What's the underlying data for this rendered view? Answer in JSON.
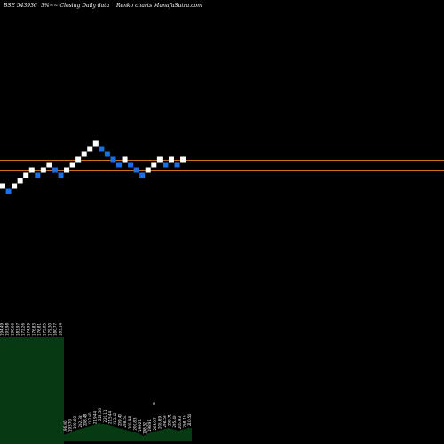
{
  "header": {
    "left": "BSE 543936",
    "mid": "3%~~ Closing Daily data",
    "right": "Renko charts MunafaSutra.com"
  },
  "colors": {
    "background": "#000000",
    "up_brick": "#ffffff",
    "down_brick": "#1a6fe8",
    "ref_line": "#c8701e",
    "volume": "#063a12"
  },
  "chart_data": {
    "type": "renko",
    "brick_pct": 3,
    "bricks": [
      {
        "dir": "up",
        "close": 0
      },
      {
        "dir": "down",
        "close": -1
      },
      {
        "dir": "up",
        "close": 0
      },
      {
        "dir": "up",
        "close": 1
      },
      {
        "dir": "up",
        "close": 2
      },
      {
        "dir": "up",
        "close": 3
      },
      {
        "dir": "down",
        "close": 2
      },
      {
        "dir": "up",
        "close": 3
      },
      {
        "dir": "up",
        "close": 4
      },
      {
        "dir": "down",
        "close": 3
      },
      {
        "dir": "down",
        "close": 2
      },
      {
        "dir": "up",
        "close": 3
      },
      {
        "dir": "up",
        "close": 4
      },
      {
        "dir": "up",
        "close": 5
      },
      {
        "dir": "up",
        "close": 6
      },
      {
        "dir": "up",
        "close": 7
      },
      {
        "dir": "up",
        "close": 8
      },
      {
        "dir": "down",
        "close": 7
      },
      {
        "dir": "down",
        "close": 6
      },
      {
        "dir": "down",
        "close": 5
      },
      {
        "dir": "down",
        "close": 4
      },
      {
        "dir": "up",
        "close": 5
      },
      {
        "dir": "down",
        "close": 4
      },
      {
        "dir": "down",
        "close": 3
      },
      {
        "dir": "down",
        "close": 2
      },
      {
        "dir": "up",
        "close": 3
      },
      {
        "dir": "up",
        "close": 4
      },
      {
        "dir": "up",
        "close": 5
      },
      {
        "dir": "down",
        "close": 4
      },
      {
        "dir": "up",
        "close": 5
      },
      {
        "dir": "down",
        "close": 4
      },
      {
        "dir": "up",
        "close": 5
      }
    ],
    "reference_lines": [
      "upper",
      "lower"
    ],
    "volume_block": {
      "labels": [
        "194.49",
        "193.98",
        "190.66",
        "183.97",
        "172.26",
        "174.99",
        "176.83",
        "176.81",
        "175.85",
        "179.30",
        "180.77",
        "183.14"
      ],
      "value": 1
    },
    "volume_bars": [
      {
        "label": "196.00",
        "value": 0.25
      },
      {
        "label": "193.70",
        "value": 0.3
      },
      {
        "label": "192.60",
        "value": 0.4
      },
      {
        "label": "202.38",
        "value": 0.45
      },
      {
        "label": "208.48",
        "value": 0.5
      },
      {
        "label": "212.60",
        "value": 0.55
      },
      {
        "label": "219.44",
        "value": 0.6
      },
      {
        "label": "222.50",
        "value": 0.7
      },
      {
        "label": "220.11",
        "value": 0.65
      },
      {
        "label": "215.44",
        "value": 0.6
      },
      {
        "label": "213.42",
        "value": 0.55
      },
      {
        "label": "209.40",
        "value": 0.5
      },
      {
        "label": "208.54",
        "value": 0.45
      },
      {
        "label": "205.98",
        "value": 0.4
      },
      {
        "label": "200.83",
        "value": 0.35
      },
      {
        "label": "199.21",
        "value": 0.3
      },
      {
        "label": "198.52",
        "value": 0.2
      },
      {
        "label": "198.91",
        "value": 0.3
      },
      {
        "label": "205.97",
        "value": 0.35
      },
      {
        "label": "205.69",
        "value": 0.4
      },
      {
        "label": "208.50",
        "value": 0.45
      },
      {
        "label": "209.71",
        "value": 0.5
      },
      {
        "label": "205.40",
        "value": 0.45
      },
      {
        "label": "205.93",
        "value": 0.4
      },
      {
        "label": "208.19",
        "value": 0.45
      },
      {
        "label": "210.54",
        "value": 0.5
      }
    ],
    "volume_marker": "e"
  }
}
